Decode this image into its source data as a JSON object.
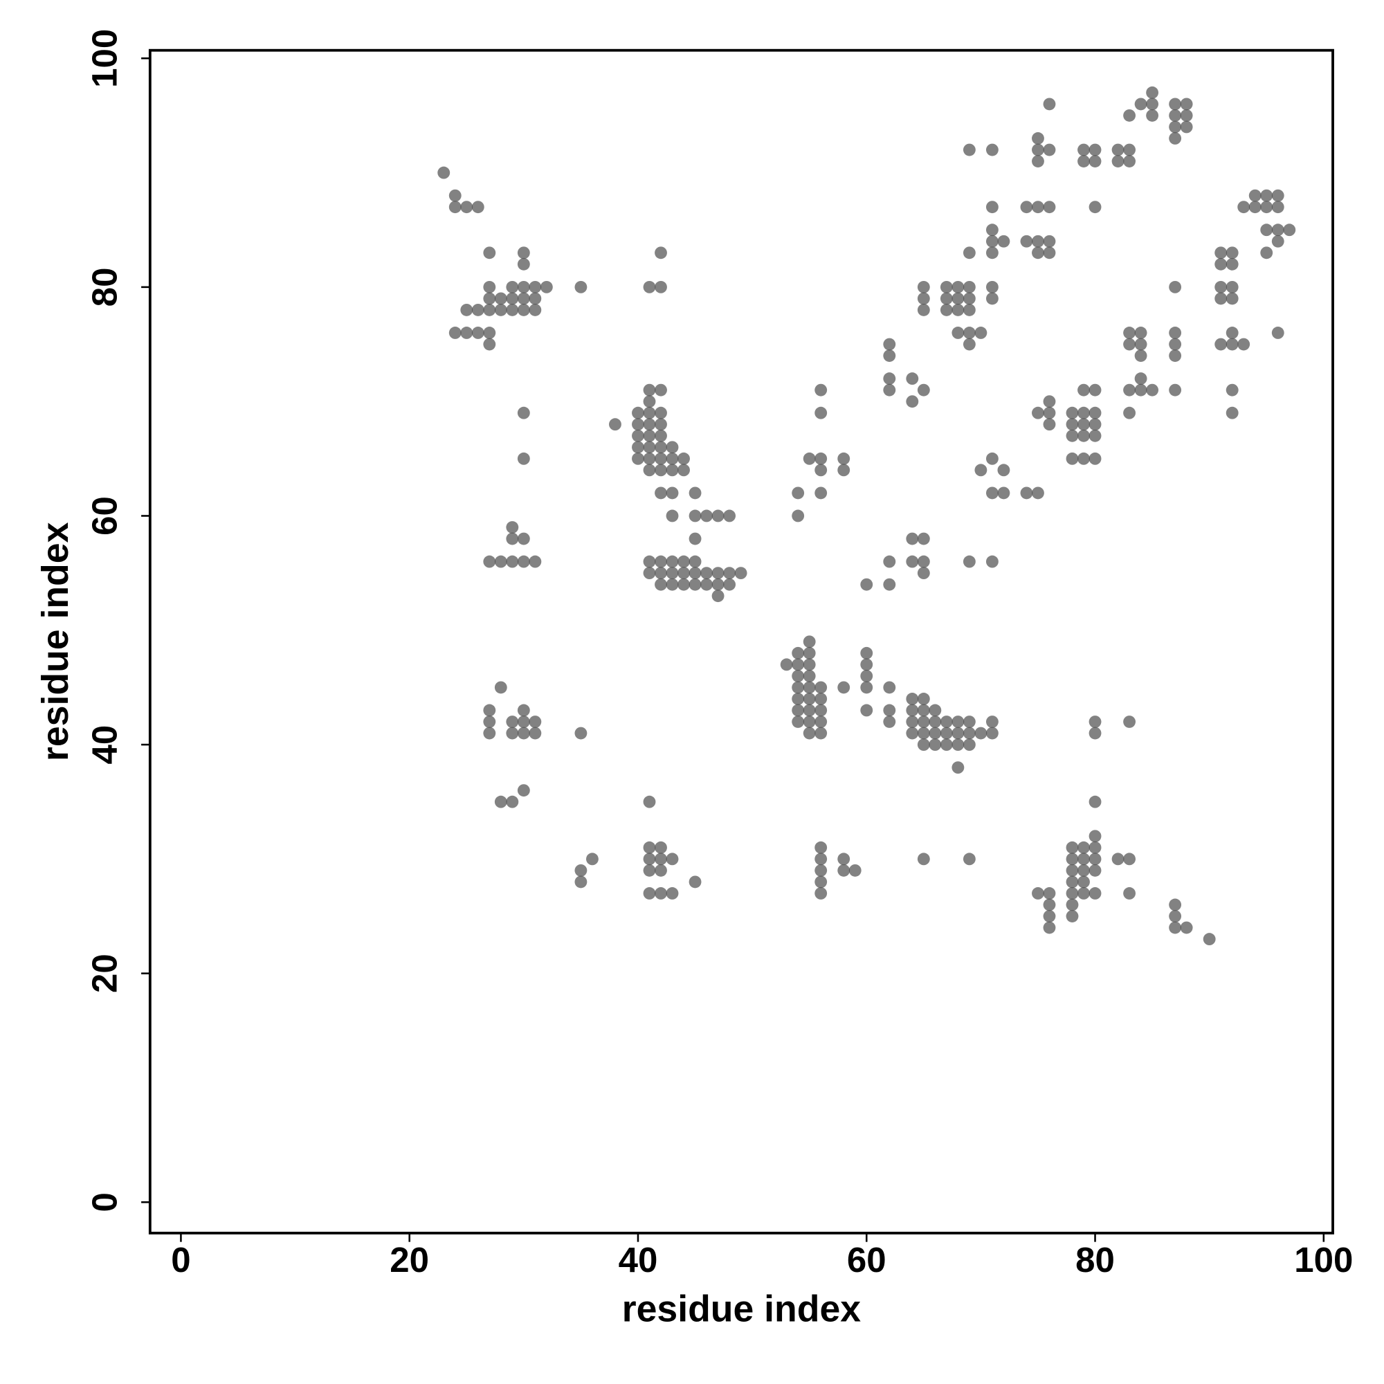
{
  "chart_data": {
    "type": "scatter",
    "x_label": "residue index",
    "y_label": "residue index",
    "color": "#4d4d4d",
    "alpha": 0.7,
    "xlim": [
      -2.7,
      100.8
    ],
    "ylim": [
      -2.7,
      100.7
    ],
    "xticks": [
      0,
      20,
      40,
      60,
      80,
      100
    ],
    "yticks": [
      0,
      20,
      40,
      60,
      80,
      100
    ],
    "x": [
      23,
      24,
      24,
      25,
      26,
      27,
      30,
      30,
      27,
      29,
      30,
      31,
      32,
      27,
      28,
      29,
      30,
      31,
      25,
      26,
      27,
      28,
      29,
      30,
      31,
      24,
      25,
      26,
      27,
      27,
      35,
      41,
      42,
      42,
      30,
      30,
      38,
      41,
      42,
      41,
      40,
      41,
      42,
      40,
      41,
      42,
      40,
      41,
      42,
      40,
      41,
      42,
      43,
      40,
      41,
      42,
      43,
      44,
      41,
      42,
      43,
      44,
      42,
      43,
      45,
      43,
      45,
      46,
      47,
      48,
      45,
      27,
      28,
      29,
      30,
      31,
      29,
      29,
      30,
      41,
      42,
      43,
      44,
      45,
      41,
      42,
      43,
      44,
      45,
      46,
      47,
      48,
      49,
      42,
      43,
      44,
      45,
      46,
      47,
      48,
      47,
      27,
      27,
      27,
      28,
      29,
      29,
      30,
      30,
      30,
      31,
      31,
      35,
      28,
      29,
      30,
      41,
      41,
      42,
      41,
      42,
      43,
      41,
      42,
      41,
      42,
      43,
      45,
      35,
      35,
      36,
      53,
      54,
      55,
      54,
      55,
      55,
      54,
      55,
      54,
      55,
      56,
      54,
      55,
      56,
      54,
      55,
      56,
      54,
      55,
      56,
      55,
      56,
      58,
      60,
      60,
      60,
      60,
      60,
      62,
      62,
      62,
      64,
      65,
      64,
      65,
      66,
      64,
      65,
      66,
      67,
      68,
      69,
      71,
      64,
      65,
      66,
      67,
      68,
      69,
      70,
      71,
      65,
      66,
      67,
      68,
      69,
      68,
      54,
      54,
      55,
      56,
      56,
      56,
      58,
      58,
      56,
      56,
      60,
      62,
      62,
      64,
      65,
      64,
      65,
      65,
      69,
      71,
      56,
      56,
      56,
      56,
      56,
      58,
      58,
      59,
      65,
      69,
      62,
      62,
      62,
      62,
      64,
      64,
      65,
      65,
      65,
      65,
      67,
      67,
      67,
      68,
      68,
      68,
      68,
      69,
      69,
      69,
      69,
      69,
      70,
      69,
      71,
      71,
      69,
      71,
      71,
      71,
      71,
      71,
      72,
      70,
      71,
      72,
      71,
      72,
      74,
      75,
      74,
      75,
      76,
      74,
      75,
      76,
      75,
      76,
      75,
      75,
      76,
      75,
      76,
      79,
      80,
      79,
      80,
      80,
      82,
      83,
      82,
      83,
      83,
      84,
      85,
      85,
      85,
      87,
      88,
      87,
      88,
      87,
      88,
      87,
      93,
      94,
      95,
      96,
      94,
      95,
      96,
      95,
      96,
      97,
      95,
      96,
      91,
      92,
      91,
      92,
      91,
      92,
      91,
      92,
      91,
      92,
      93,
      92,
      92,
      92,
      96,
      87,
      83,
      84,
      83,
      84,
      84,
      84,
      83,
      84,
      85,
      83,
      87,
      87,
      87,
      87,
      75,
      76,
      76,
      76,
      78,
      79,
      80,
      78,
      79,
      80,
      78,
      79,
      80,
      79,
      80,
      78,
      79,
      80,
      80,
      80,
      83,
      80,
      80,
      78,
      79,
      80,
      78,
      79,
      80,
      78,
      79,
      80,
      78,
      79,
      78,
      79,
      80,
      78,
      78,
      82,
      83,
      83,
      75,
      76,
      76,
      76,
      76,
      87,
      87,
      87,
      88,
      90
    ],
    "values": [
      90,
      88,
      87,
      87,
      87,
      83,
      83,
      82,
      80,
      80,
      80,
      80,
      80,
      79,
      79,
      79,
      79,
      79,
      78,
      78,
      78,
      78,
      78,
      78,
      78,
      76,
      76,
      76,
      76,
      75,
      80,
      80,
      80,
      83,
      69,
      65,
      68,
      71,
      71,
      70,
      69,
      69,
      69,
      68,
      68,
      68,
      67,
      67,
      67,
      66,
      66,
      66,
      66,
      65,
      65,
      65,
      65,
      65,
      64,
      64,
      64,
      64,
      62,
      62,
      62,
      60,
      60,
      60,
      60,
      60,
      58,
      56,
      56,
      56,
      56,
      56,
      59,
      58,
      58,
      56,
      56,
      56,
      56,
      56,
      55,
      55,
      55,
      55,
      55,
      55,
      55,
      55,
      55,
      54,
      54,
      54,
      54,
      54,
      54,
      54,
      53,
      43,
      42,
      41,
      45,
      42,
      41,
      43,
      42,
      41,
      42,
      41,
      41,
      35,
      35,
      36,
      35,
      31,
      31,
      30,
      30,
      30,
      29,
      29,
      27,
      27,
      27,
      28,
      29,
      28,
      30,
      47,
      48,
      49,
      47,
      47,
      48,
      46,
      46,
      45,
      45,
      45,
      44,
      44,
      44,
      43,
      43,
      43,
      42,
      42,
      42,
      41,
      41,
      45,
      48,
      47,
      46,
      45,
      43,
      45,
      43,
      42,
      44,
      44,
      43,
      43,
      43,
      42,
      42,
      42,
      42,
      42,
      42,
      42,
      41,
      41,
      41,
      41,
      41,
      41,
      41,
      41,
      40,
      40,
      40,
      40,
      40,
      38,
      62,
      60,
      65,
      65,
      64,
      62,
      65,
      64,
      69,
      71,
      54,
      56,
      54,
      58,
      58,
      56,
      56,
      55,
      56,
      56,
      31,
      30,
      29,
      28,
      27,
      30,
      29,
      29,
      30,
      30,
      75,
      74,
      72,
      71,
      72,
      70,
      71,
      80,
      79,
      78,
      80,
      79,
      78,
      80,
      79,
      78,
      76,
      80,
      79,
      78,
      76,
      75,
      76,
      83,
      80,
      79,
      92,
      92,
      87,
      85,
      84,
      83,
      84,
      64,
      65,
      64,
      62,
      62,
      62,
      62,
      87,
      87,
      87,
      84,
      84,
      84,
      83,
      83,
      93,
      92,
      92,
      91,
      96,
      92,
      92,
      91,
      91,
      87,
      92,
      92,
      91,
      91,
      95,
      96,
      97,
      96,
      95,
      96,
      96,
      95,
      95,
      94,
      94,
      93,
      87,
      88,
      88,
      88,
      87,
      87,
      87,
      85,
      85,
      85,
      83,
      84,
      83,
      83,
      82,
      82,
      80,
      80,
      79,
      79,
      75,
      75,
      75,
      76,
      71,
      69,
      76,
      80,
      76,
      76,
      75,
      75,
      74,
      72,
      71,
      71,
      71,
      69,
      76,
      75,
      74,
      71,
      69,
      70,
      69,
      68,
      69,
      69,
      69,
      68,
      68,
      68,
      67,
      67,
      67,
      71,
      71,
      65,
      65,
      65,
      42,
      41,
      42,
      35,
      32,
      31,
      31,
      31,
      30,
      30,
      30,
      29,
      29,
      29,
      28,
      28,
      27,
      27,
      27,
      26,
      25,
      30,
      30,
      27,
      27,
      27,
      26,
      25,
      24,
      26,
      25,
      24,
      24,
      23
    ]
  }
}
